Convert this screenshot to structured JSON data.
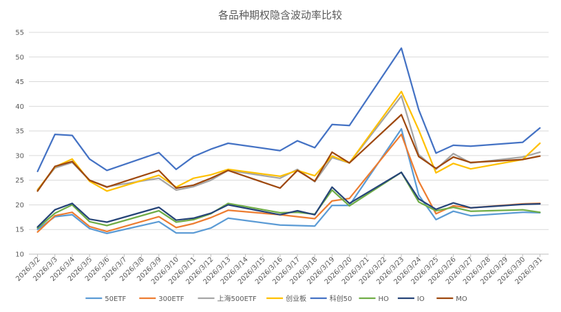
{
  "chart_data": {
    "type": "line",
    "title": "各品种期权隐含波动率比较",
    "xlabel": "",
    "ylabel": "",
    "ylim": [
      10,
      55
    ],
    "yticks": [
      10,
      15,
      20,
      25,
      30,
      35,
      40,
      45,
      50,
      55
    ],
    "grid": true,
    "legend_position": "bottom",
    "categories": [
      "2026/3/2",
      "2026/3/3",
      "2026/3/4",
      "2026/3/5",
      "2026/3/6",
      "2026/3/7",
      "2026/3/8",
      "2026/3/9",
      "2026/3/10",
      "2026/3/11",
      "2026/3/12",
      "2026/3/13",
      "2026/3/14",
      "2026/3/15",
      "2026/3/16",
      "2026/3/17",
      "2026/3/18",
      "2026/3/19",
      "2026/3/20",
      "2026/3/21",
      "2026/3/22",
      "2026/3/23",
      "2026/3/24",
      "2026/3/25",
      "2026/3/26",
      "2026/3/27",
      "2026/3/28",
      "2026/3/29",
      "2026/3/30",
      "2026/3/31"
    ],
    "series": [
      {
        "name": "50ETF",
        "color": "#5b9bd5",
        "values": [
          15.0,
          17.6,
          18.0,
          15.2,
          14.2,
          null,
          null,
          16.6,
          14.3,
          14.3,
          15.3,
          17.3,
          null,
          null,
          15.9,
          15.8,
          15.7,
          19.9,
          19.9,
          null,
          null,
          35.4,
          22.0,
          17.0,
          18.7,
          17.8,
          null,
          null,
          18.5,
          18.4
        ]
      },
      {
        "name": "300ETF",
        "color": "#ed7d31",
        "values": [
          14.5,
          17.8,
          18.5,
          15.6,
          14.6,
          null,
          null,
          17.6,
          15.4,
          16.2,
          17.4,
          18.9,
          null,
          null,
          18.0,
          17.6,
          17.2,
          20.8,
          21.3,
          null,
          null,
          34.3,
          24.8,
          18.2,
          19.8,
          19.4,
          null,
          null,
          20.2,
          20.3
        ]
      },
      {
        "name": "上海500ETF",
        "color": "#a5a5a5",
        "values": [
          23.1,
          27.5,
          28.6,
          25.0,
          23.7,
          null,
          null,
          25.4,
          23.0,
          23.7,
          25.0,
          27.0,
          null,
          null,
          25.4,
          27.2,
          24.7,
          29.6,
          28.5,
          null,
          null,
          42.1,
          30.2,
          27.2,
          30.4,
          28.5,
          null,
          null,
          29.7,
          30.7
        ]
      },
      {
        "name": "创业板",
        "color": "#ffc000",
        "values": [
          23.0,
          27.7,
          29.3,
          24.8,
          22.8,
          null,
          null,
          26.0,
          23.6,
          25.4,
          26.1,
          27.2,
          null,
          null,
          25.8,
          27.0,
          25.9,
          29.9,
          28.5,
          null,
          null,
          43.0,
          35.2,
          26.5,
          28.4,
          27.3,
          null,
          null,
          29.2,
          32.5
        ]
      },
      {
        "name": "科创50",
        "color": "#4472c4",
        "values": [
          26.8,
          34.3,
          34.1,
          29.3,
          27.0,
          null,
          null,
          30.6,
          27.2,
          29.8,
          31.3,
          32.5,
          null,
          null,
          31.0,
          33.0,
          31.6,
          36.3,
          36.1,
          null,
          null,
          51.8,
          39.3,
          30.5,
          32.1,
          31.9,
          null,
          null,
          32.7,
          35.6
        ]
      },
      {
        "name": "HO",
        "color": "#70ad47",
        "values": [
          15.3,
          18.3,
          20.0,
          16.6,
          15.8,
          null,
          null,
          18.8,
          16.5,
          17.0,
          18.2,
          20.3,
          null,
          null,
          18.4,
          18.5,
          18.1,
          23.0,
          19.8,
          null,
          null,
          26.6,
          20.6,
          18.8,
          19.5,
          18.7,
          null,
          null,
          19.0,
          18.5
        ]
      },
      {
        "name": "IO",
        "color": "#264478",
        "values": [
          15.5,
          19.0,
          20.3,
          17.1,
          16.5,
          null,
          null,
          19.5,
          16.9,
          17.3,
          18.3,
          20.0,
          null,
          null,
          18.0,
          18.8,
          18.0,
          23.6,
          20.3,
          null,
          null,
          26.6,
          21.2,
          19.1,
          20.4,
          19.4,
          null,
          null,
          20.1,
          20.2
        ]
      },
      {
        "name": "MO",
        "color": "#9e480e",
        "values": [
          22.8,
          27.8,
          28.8,
          25.0,
          23.6,
          null,
          null,
          27.0,
          23.4,
          24.0,
          25.4,
          27.0,
          null,
          null,
          23.4,
          27.0,
          24.8,
          30.7,
          28.5,
          null,
          null,
          38.3,
          29.8,
          27.4,
          29.7,
          28.6,
          null,
          null,
          29.2,
          29.9
        ]
      }
    ]
  }
}
